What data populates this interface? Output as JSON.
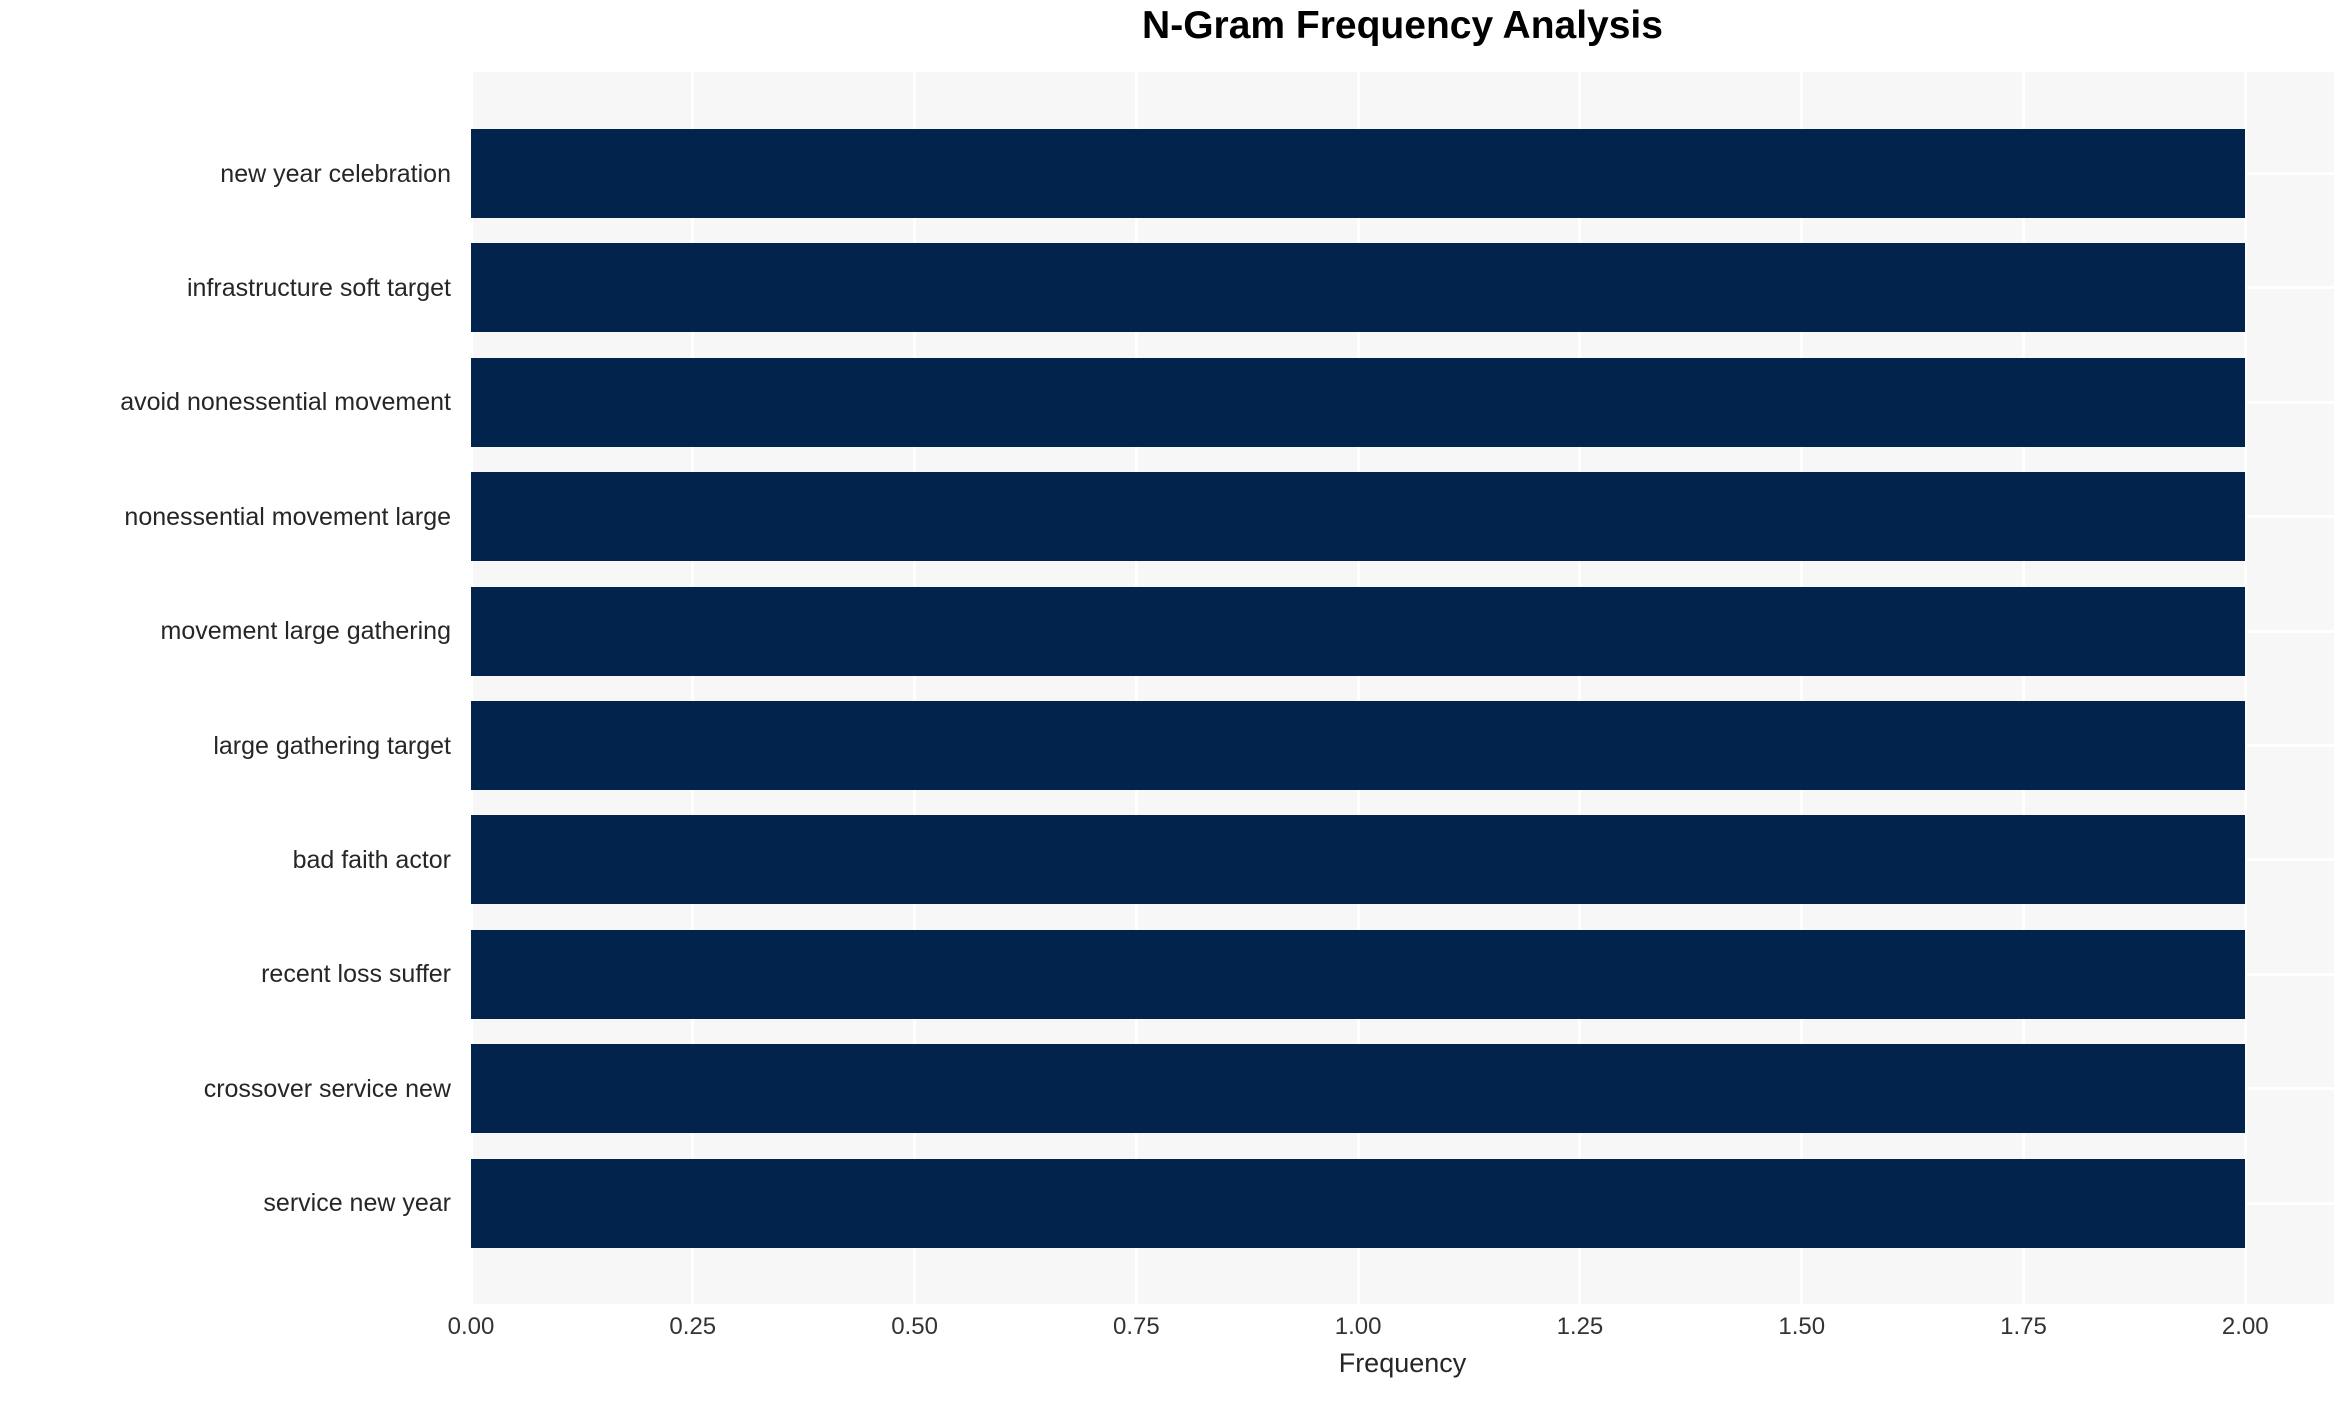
{
  "chart_data": {
    "type": "bar",
    "orientation": "horizontal",
    "title": "N-Gram Frequency Analysis",
    "xlabel": "Frequency",
    "ylabel": "",
    "categories": [
      "new year celebration",
      "infrastructure soft target",
      "avoid nonessential movement",
      "nonessential movement large",
      "movement large gathering",
      "large gathering target",
      "bad faith actor",
      "recent loss suffer",
      "crossover service new",
      "service new year"
    ],
    "values": [
      2,
      2,
      2,
      2,
      2,
      2,
      2,
      2,
      2,
      2
    ],
    "xlim": [
      0,
      2.1
    ],
    "xticks": [
      "0.00",
      "0.25",
      "0.50",
      "0.75",
      "1.00",
      "1.25",
      "1.50",
      "1.75",
      "2.00"
    ],
    "grid": true,
    "legend": "none",
    "colors": {
      "bar": "#02234c",
      "plot_background": "#f7f7f7",
      "gridline": "#ffffff",
      "title_text": "#000000",
      "tick_text": "#333333",
      "category_text": "#262626"
    }
  }
}
